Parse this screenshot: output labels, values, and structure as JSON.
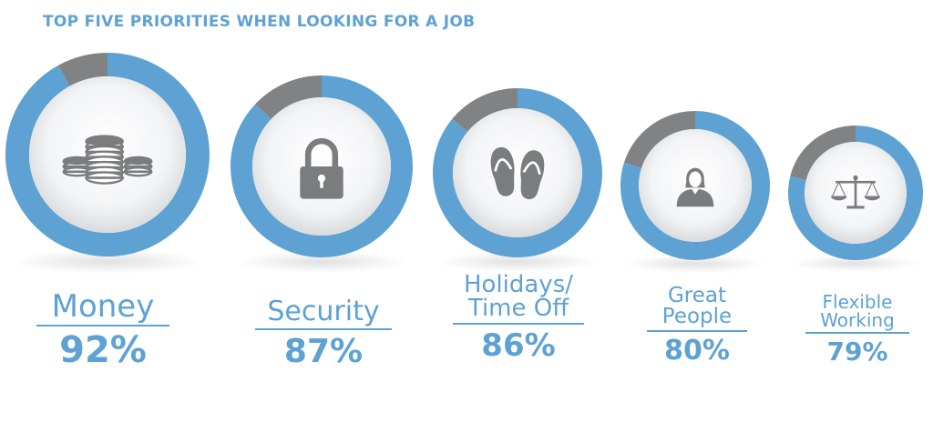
{
  "title": "TOP FIVE PRIORITIES WHEN LOOKING FOR A JOB",
  "colors": {
    "accent": "#5ea2d4",
    "remainder": "#808284",
    "icon": "#7b7c7e"
  },
  "chart_data": {
    "type": "pie",
    "title": "TOP FIVE PRIORITIES WHEN LOOKING FOR A JOB",
    "categories": [
      {
        "name": "Money",
        "value": 92,
        "value_label": "92%",
        "icon": "coins-icon"
      },
      {
        "name": "Security",
        "value": 87,
        "value_label": "87%",
        "icon": "padlock-icon"
      },
      {
        "name": "Holidays/ Time Off",
        "value": 86,
        "value_label": "86%",
        "icon": "flip-flops-icon"
      },
      {
        "name": "Great People",
        "value": 80,
        "value_label": "80%",
        "icon": "person-icon"
      },
      {
        "name": "Flexible Working",
        "value": 79,
        "value_label": "79%",
        "icon": "scales-icon"
      }
    ]
  }
}
